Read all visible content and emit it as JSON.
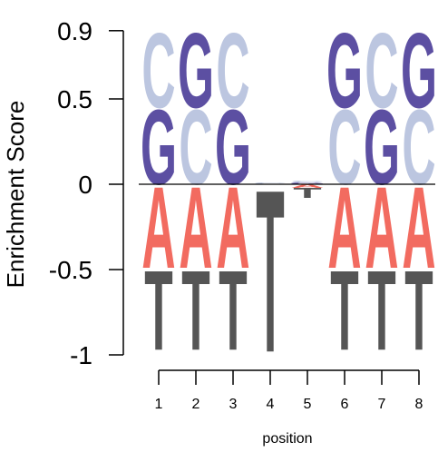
{
  "chart_data": {
    "type": "sequence-logo",
    "title": "",
    "xlabel": "position",
    "ylabel": "Enrichment Score",
    "ylim": [
      -1,
      0.9
    ],
    "y_ticks": [
      0.9,
      0.5,
      0,
      -0.5,
      -1
    ],
    "y_tick_labels": [
      "0.9",
      "0.5",
      "0",
      "-0.5",
      "-1"
    ],
    "x_ticks": [
      1,
      2,
      3,
      4,
      5,
      6,
      7,
      8
    ],
    "x_tick_labels": [
      "1",
      "2",
      "3",
      "4",
      "5",
      "6",
      "7",
      "8"
    ],
    "colors": {
      "A": "#f26b60",
      "C": "#bcc6e0",
      "G": "#5c4fa2",
      "T": "#555555",
      "axis": "#000000"
    },
    "positions": [
      {
        "pos": 1,
        "letters": [
          {
            "letter": "A",
            "from": 0,
            "to": -0.49
          },
          {
            "letter": "T",
            "from": -0.49,
            "to": -0.97
          },
          {
            "letter": "G",
            "from": 0,
            "to": 0.45
          },
          {
            "letter": "C",
            "from": 0.45,
            "to": 0.9
          }
        ]
      },
      {
        "pos": 2,
        "letters": [
          {
            "letter": "A",
            "from": 0,
            "to": -0.49
          },
          {
            "letter": "T",
            "from": -0.49,
            "to": -0.97
          },
          {
            "letter": "C",
            "from": 0,
            "to": 0.45
          },
          {
            "letter": "G",
            "from": 0.45,
            "to": 0.9
          }
        ]
      },
      {
        "pos": 3,
        "letters": [
          {
            "letter": "A",
            "from": 0,
            "to": -0.49
          },
          {
            "letter": "T",
            "from": -0.49,
            "to": -0.97
          },
          {
            "letter": "G",
            "from": 0,
            "to": 0.45
          },
          {
            "letter": "C",
            "from": 0.45,
            "to": 0.9
          }
        ]
      },
      {
        "pos": 4,
        "letters": [
          {
            "letter": "T",
            "from": 0,
            "to": -0.98
          },
          {
            "letter": "C",
            "from": 0,
            "to": 0.01
          }
        ]
      },
      {
        "pos": 5,
        "letters": [
          {
            "letter": "A",
            "from": 0,
            "to": -0.02
          },
          {
            "letter": "T",
            "from": -0.02,
            "to": -0.08
          },
          {
            "letter": "G",
            "from": 0,
            "to": 0.01
          },
          {
            "letter": "C",
            "from": 0.01,
            "to": 0.02
          }
        ]
      },
      {
        "pos": 6,
        "letters": [
          {
            "letter": "A",
            "from": 0,
            "to": -0.49
          },
          {
            "letter": "T",
            "from": -0.49,
            "to": -0.97
          },
          {
            "letter": "C",
            "from": 0,
            "to": 0.45
          },
          {
            "letter": "G",
            "from": 0.45,
            "to": 0.9
          }
        ]
      },
      {
        "pos": 7,
        "letters": [
          {
            "letter": "A",
            "from": 0,
            "to": -0.49
          },
          {
            "letter": "T",
            "from": -0.49,
            "to": -0.97
          },
          {
            "letter": "G",
            "from": 0,
            "to": 0.45
          },
          {
            "letter": "C",
            "from": 0.45,
            "to": 0.9
          }
        ]
      },
      {
        "pos": 8,
        "letters": [
          {
            "letter": "A",
            "from": 0,
            "to": -0.49
          },
          {
            "letter": "T",
            "from": -0.49,
            "to": -0.97
          },
          {
            "letter": "C",
            "from": 0,
            "to": 0.45
          },
          {
            "letter": "G",
            "from": 0.45,
            "to": 0.9
          }
        ]
      }
    ]
  }
}
